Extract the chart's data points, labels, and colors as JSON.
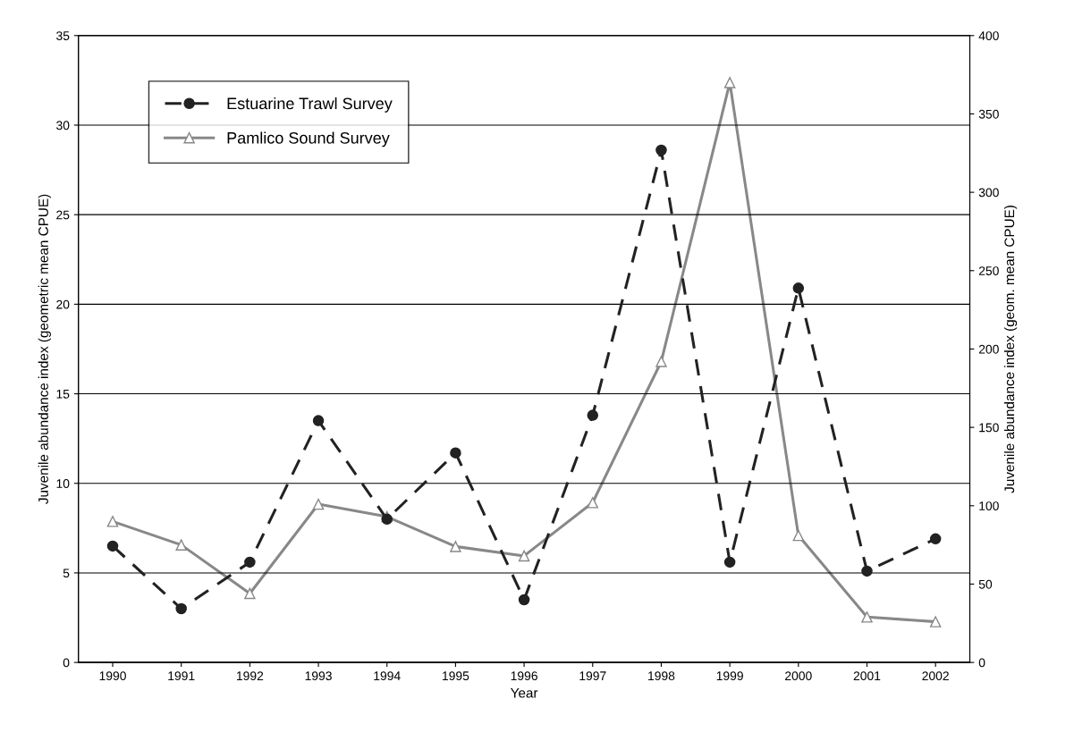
{
  "chart_data": {
    "type": "line",
    "xlabel": "Year",
    "ylabel": "Juvenile abundance index (geometric mean CPUE)",
    "y2label": "Juvenile abundance index (geom. mean CPUE)",
    "categories": [
      "1990",
      "1991",
      "1992",
      "1993",
      "1994",
      "1995",
      "1996",
      "1997",
      "1998",
      "1999",
      "2000",
      "2001",
      "2002"
    ],
    "series": [
      {
        "name": "Estuarine Trawl Survey",
        "color": "#222222",
        "marker": "circle",
        "line_style": "dashed",
        "values": [
          6.5,
          3.0,
          5.6,
          13.5,
          8.0,
          11.7,
          3.5,
          13.8,
          28.6,
          5.6,
          20.9,
          5.1,
          6.9
        ]
      },
      {
        "name": "Pamlico Sound Survey",
        "color": "#888888",
        "marker": "triangle",
        "line_style": "solid",
        "axis": "y2",
        "values": [
          90,
          75,
          44,
          101,
          93,
          74,
          68,
          102,
          192,
          370,
          81,
          29,
          26
        ]
      }
    ],
    "ylim": [
      0,
      35
    ],
    "yticks": [
      0,
      5,
      10,
      15,
      20,
      25,
      30,
      35
    ],
    "y2lim": [
      0,
      400
    ],
    "y2ticks": [
      0,
      50,
      100,
      150,
      200,
      250,
      300,
      350,
      400
    ],
    "grid": "y",
    "legend": "top left"
  }
}
